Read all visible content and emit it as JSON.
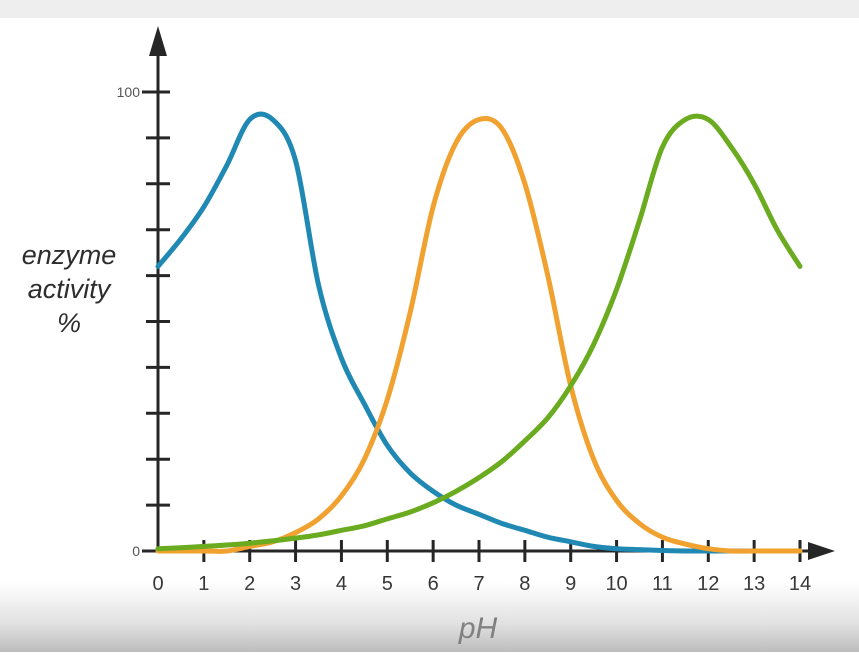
{
  "chart_data": {
    "type": "line",
    "title": "",
    "xlabel": "pH",
    "ylabel_lines": [
      "enzyme",
      "activity",
      "%"
    ],
    "xlim": [
      0,
      14
    ],
    "ylim": [
      0,
      100
    ],
    "x_ticks": [
      "0",
      "1",
      "2",
      "3",
      "4",
      "5",
      "6",
      "7",
      "8",
      "9",
      "10",
      "11",
      "12",
      "13",
      "14"
    ],
    "y_tick_labels": [
      {
        "value": 0,
        "label": "0"
      },
      {
        "value": 100,
        "label": "100"
      }
    ],
    "y_minor_ticks": [
      10,
      20,
      30,
      40,
      50,
      60,
      70,
      80,
      90
    ],
    "grid": false,
    "series": [
      {
        "color": "#1f89b3",
        "x": [
          0,
          0.5,
          1,
          1.5,
          2,
          2.5,
          3,
          3.5,
          4,
          4.5,
          5,
          5.5,
          6,
          6.5,
          7,
          7.5,
          8,
          8.5,
          9,
          9.5,
          10,
          10.5,
          11,
          11.5,
          12,
          12.5,
          13,
          13.5,
          14
        ],
        "y": [
          62,
          68,
          75,
          84,
          94,
          94,
          85,
          58,
          42,
          32,
          23,
          17,
          13,
          10,
          8,
          6,
          4.5,
          3,
          2,
          1,
          0.5,
          0.3,
          0.1,
          0,
          0,
          0,
          0,
          0,
          0
        ]
      },
      {
        "color": "#f0a12f",
        "x": [
          0,
          0.5,
          1,
          1.5,
          2,
          2.5,
          3,
          3.5,
          4,
          4.5,
          5,
          5.5,
          6,
          6.5,
          7,
          7.5,
          8,
          8.5,
          9,
          9.5,
          10,
          10.5,
          11,
          11.5,
          12,
          12.5,
          13,
          13.5,
          14
        ],
        "y": [
          0,
          0,
          0,
          0,
          1,
          2,
          4,
          7,
          12,
          20,
          33,
          52,
          75,
          89,
          94,
          92,
          80,
          60,
          36,
          20,
          11,
          6,
          3,
          1.5,
          0.5,
          0,
          0,
          0,
          0
        ]
      },
      {
        "color": "#6aab1f",
        "x": [
          0,
          0.5,
          1,
          1.5,
          2,
          2.5,
          3,
          3.5,
          4,
          4.5,
          5,
          5.5,
          6,
          6.5,
          7,
          7.5,
          8,
          8.5,
          9,
          9.5,
          10,
          10.5,
          11,
          11.5,
          12,
          12.5,
          13,
          13.5,
          14
        ],
        "y": [
          0.5,
          0.7,
          1,
          1.3,
          1.7,
          2.2,
          2.8,
          3.5,
          4.5,
          5.5,
          7,
          8.5,
          10.5,
          13,
          16,
          19.5,
          24,
          29,
          36,
          45,
          57,
          72,
          88,
          94,
          94,
          88,
          80,
          70,
          62
        ]
      }
    ]
  }
}
